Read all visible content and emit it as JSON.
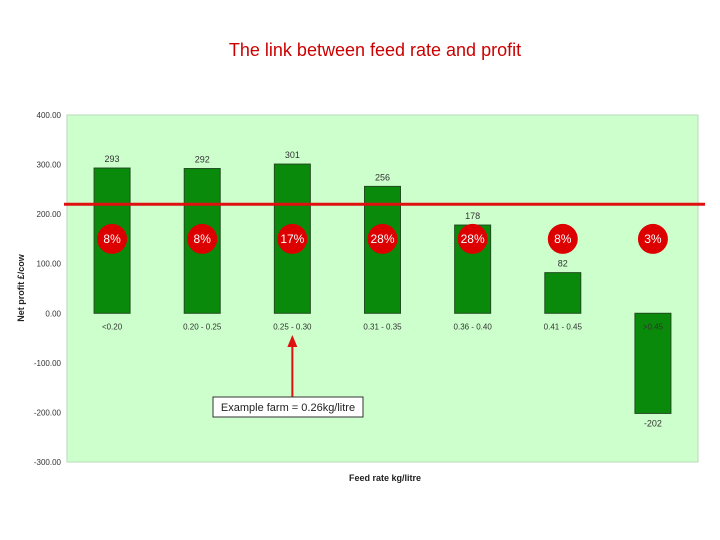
{
  "title": "The link between feed rate and profit",
  "annotation": "Example farm = 0.26kg/litre",
  "colors": {
    "plot_bg": "#ccffcc",
    "bar": "#0a8a0a",
    "bar_edge": "#1f4d1f",
    "reference_line": "#e01010",
    "badge": "#dd0000",
    "title": "#cc0000"
  },
  "chart_data": {
    "type": "bar",
    "title": "The link between feed rate and profit",
    "xlabel": "Feed rate kg/litre",
    "ylabel": "Net profit £/cow",
    "ylim": [
      -300,
      400
    ],
    "yticks": [
      "400.00",
      "300.00",
      "200.00",
      "100.00",
      "0.00",
      "-100.00",
      "-200.00",
      "-300.00"
    ],
    "ytick_values": [
      400,
      300,
      200,
      100,
      0,
      -100,
      -200,
      -300
    ],
    "categories": [
      "<0.20",
      "0.20 - 0.25",
      "0.25 - 0.30",
      "0.31 - 0.35",
      "0.36 - 0.40",
      "0.41 - 0.45",
      ">0.45"
    ],
    "values": [
      293,
      292,
      301,
      256,
      178,
      82,
      -202
    ],
    "value_labels": [
      "293",
      "292",
      "301",
      "256",
      "178",
      "82",
      "-202"
    ],
    "shares": [
      "8%",
      "8%",
      "17%",
      "28%",
      "28%",
      "8%",
      "3%"
    ],
    "reference_line": 220,
    "grid": false
  }
}
